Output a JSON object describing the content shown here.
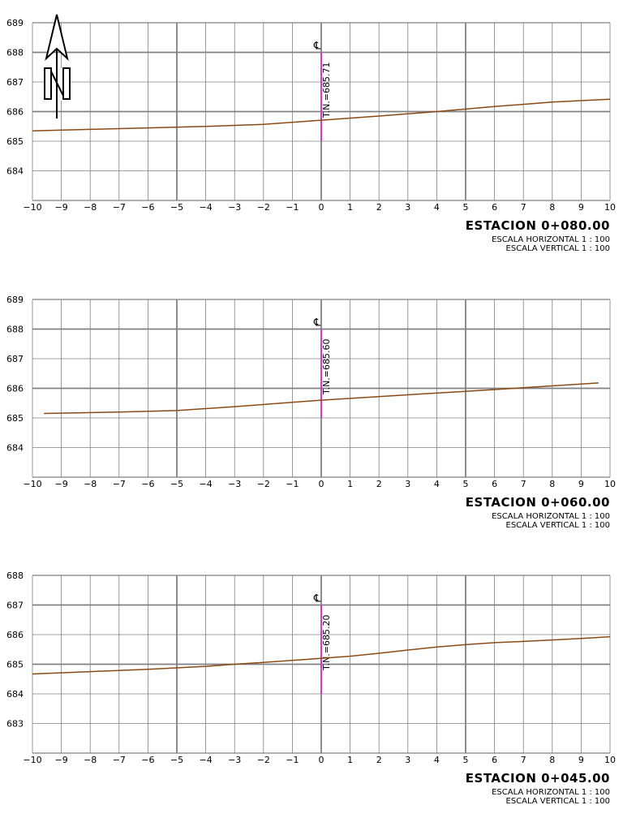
{
  "north_arrow": {
    "icon": "north-arrow-icon",
    "letter": "N"
  },
  "colors": {
    "grid": "#808080",
    "grid_major": "#808080",
    "terrain": "#8b4a14",
    "axis_marker": "#ff00ff",
    "text": "#000000"
  },
  "chart_data": [
    {
      "type": "line",
      "title": "ESTACION 0+080.00",
      "scale_h": "ESCALA HORIZONTAL 1 : 100",
      "scale_v": "ESCALA VERTICAL 1 : 100",
      "centerline_label": "℄",
      "tn_label": "T.N.=685.71",
      "xlim": [
        -10,
        10
      ],
      "ylim": [
        683,
        689
      ],
      "x_ticks": [
        "−10",
        "−9",
        "−8",
        "−7",
        "−6",
        "−5",
        "−4",
        "−3",
        "−2",
        "−1",
        "0",
        "1",
        "2",
        "3",
        "4",
        "5",
        "6",
        "7",
        "8",
        "9",
        "10"
      ],
      "y_ticks": [
        "689",
        "688",
        "687",
        "686",
        "685",
        "684"
      ],
      "y_tick_values": [
        689,
        688,
        687,
        686,
        685,
        684
      ],
      "marker": {
        "x": 0,
        "y_from": 685.0,
        "y_to": 688.0
      },
      "series": [
        {
          "x": [
            -10,
            -8,
            -6,
            -4,
            -2,
            0,
            2,
            4,
            6,
            8,
            10
          ],
          "y": [
            685.35,
            685.4,
            685.45,
            685.5,
            685.57,
            685.71,
            685.85,
            686.0,
            686.17,
            686.32,
            686.42
          ]
        }
      ]
    },
    {
      "type": "line",
      "title": "ESTACION 0+060.00",
      "scale_h": "ESCALA HORIZONTAL 1 : 100",
      "scale_v": "ESCALA VERTICAL 1 : 100",
      "centerline_label": "℄",
      "tn_label": "T.N.=685.60",
      "xlim": [
        -10,
        10
      ],
      "ylim": [
        683,
        689
      ],
      "x_ticks": [
        "−10",
        "−9",
        "−8",
        "−7",
        "−6",
        "−5",
        "−4",
        "−3",
        "−2",
        "−1",
        "0",
        "1",
        "2",
        "3",
        "4",
        "5",
        "6",
        "7",
        "8",
        "9",
        "10"
      ],
      "y_ticks": [
        "689",
        "688",
        "687",
        "686",
        "685",
        "684"
      ],
      "y_tick_values": [
        689,
        688,
        687,
        686,
        685,
        684
      ],
      "marker": {
        "x": 0,
        "y_from": 685.0,
        "y_to": 688.0
      },
      "series": [
        {
          "x": [
            -9.6,
            -7,
            -5,
            -3,
            0,
            3,
            5,
            7,
            9.6
          ],
          "y": [
            685.15,
            685.2,
            685.25,
            685.38,
            685.6,
            685.78,
            685.9,
            686.02,
            686.18
          ]
        }
      ]
    },
    {
      "type": "line",
      "title": "ESTACION 0+045.00",
      "scale_h": "ESCALA HORIZONTAL 1 : 100",
      "scale_v": "ESCALA VERTICAL 1 : 100",
      "centerline_label": "℄",
      "tn_label": "T.N.=685.20",
      "xlim": [
        -10,
        10
      ],
      "ylim": [
        682,
        688
      ],
      "x_ticks": [
        "−10",
        "−9",
        "−8",
        "−7",
        "−6",
        "−5",
        "−4",
        "−3",
        "−2",
        "−1",
        "0",
        "1",
        "2",
        "3",
        "4",
        "5",
        "6",
        "7",
        "8",
        "9",
        "10"
      ],
      "y_ticks": [
        "688",
        "687",
        "686",
        "685",
        "684",
        "683"
      ],
      "y_tick_values": [
        688,
        687,
        686,
        685,
        684,
        683
      ],
      "marker": {
        "x": 0,
        "y_from": 684.0,
        "y_to": 687.0
      },
      "series": [
        {
          "x": [
            -10,
            -8,
            -6,
            -4,
            -3,
            -2,
            0,
            1,
            2,
            3,
            4,
            5,
            6,
            7,
            8,
            9,
            10
          ],
          "y": [
            684.67,
            684.75,
            684.83,
            684.93,
            685.0,
            685.06,
            685.2,
            685.27,
            685.37,
            685.48,
            685.58,
            685.66,
            685.73,
            685.77,
            685.82,
            685.87,
            685.93
          ]
        }
      ]
    }
  ]
}
